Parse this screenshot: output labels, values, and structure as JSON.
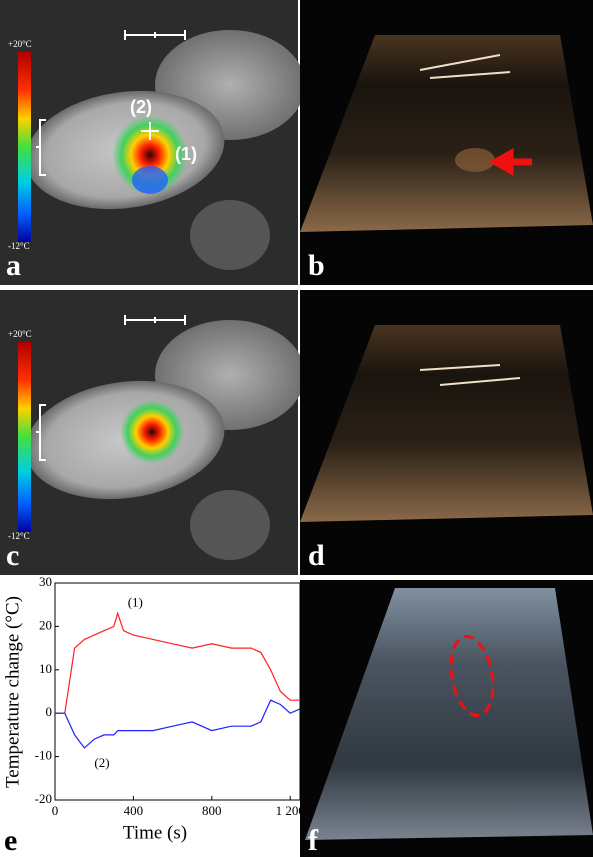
{
  "chart_data": {
    "type": "line",
    "panel_label": "e",
    "xlabel": "Time (s)",
    "ylabel": "Temperature change (°C)",
    "x": [
      0,
      50,
      100,
      150,
      200,
      250,
      300,
      320,
      350,
      400,
      500,
      600,
      700,
      800,
      900,
      1000,
      1050,
      1100,
      1150,
      1200,
      1250
    ],
    "series": [
      {
        "name": "(1)",
        "color": "#ff2020",
        "values": [
          0,
          0,
          15,
          17,
          18,
          19,
          20,
          23,
          19,
          18,
          17,
          16,
          15,
          16,
          15,
          15,
          14,
          10,
          5,
          3,
          3
        ]
      },
      {
        "name": "(2)",
        "color": "#2020ff",
        "values": [
          0,
          0,
          -5,
          -8,
          -6,
          -5,
          -5,
          -4,
          -4,
          -4,
          -4,
          -3,
          -2,
          -4,
          -3,
          -3,
          -2,
          3,
          2,
          0,
          1
        ]
      }
    ],
    "xlim": [
      0,
      1250
    ],
    "ylim": [
      -20,
      30
    ],
    "xticks": [
      0,
      400,
      800,
      {
        "value": 1200,
        "label": "1 200"
      }
    ],
    "yticks": [
      -20,
      -10,
      0,
      10,
      20,
      30
    ]
  },
  "panels": [
    {
      "label": "a",
      "colorbar": [
        "+20°C",
        "-12°C"
      ],
      "annotations": [
        "(2)",
        "(1)"
      ]
    },
    {
      "label": "b"
    },
    {
      "label": "c",
      "colorbar": [
        "+20°C",
        "-12°C"
      ]
    },
    {
      "label": "d"
    },
    {
      "label": "f"
    }
  ]
}
